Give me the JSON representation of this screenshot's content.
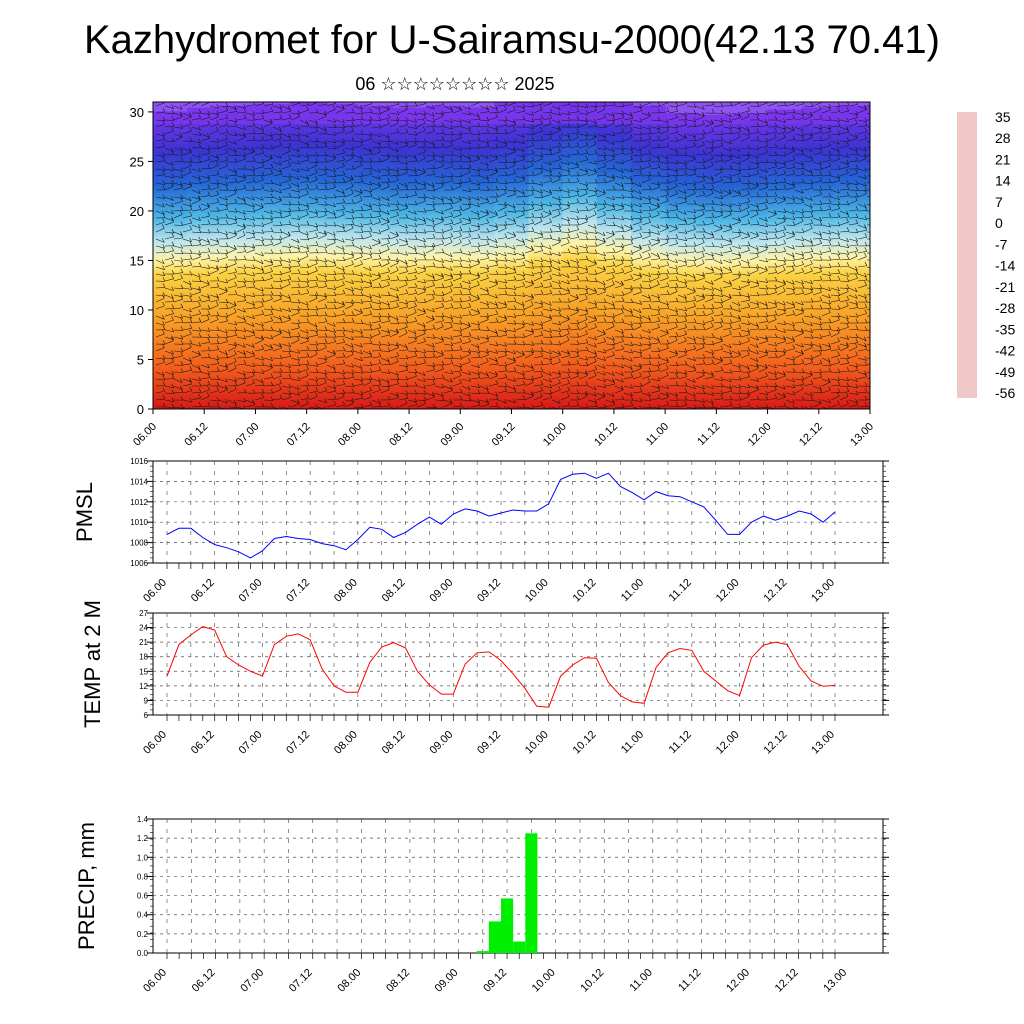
{
  "title": "Kazhydromet for U-Sairamsu-2000(42.13 70.41)",
  "subtitle": "06 ☆☆☆☆☆☆☆☆ 2025",
  "chart_data": [
    {
      "type": "heatmap",
      "x_ticks": [
        "06.00",
        "06.12",
        "07.00",
        "07.12",
        "08.00",
        "08.12",
        "09.00",
        "09.12",
        "10.00",
        "10.12",
        "11.00",
        "11.12",
        "12.00",
        "12.12",
        "13.00"
      ],
      "y_ticks": [
        "0",
        "5",
        "10",
        "15",
        "20",
        "25",
        "30"
      ],
      "ylim": [
        0,
        31
      ],
      "colorbar_labels": [
        "35",
        "28",
        "21",
        "14",
        "7",
        "0",
        "-7",
        "-14",
        "-21",
        "-28",
        "-35",
        "-42",
        "-49",
        "-56"
      ],
      "colorbar_colors": [
        "#f0c8c8",
        "#d21414",
        "#f04020",
        "#f57518",
        "#f6a020",
        "#fad54a",
        "#fff08c",
        "#c6ebf0",
        "#4ab5e8",
        "#2060d4",
        "#3338d0",
        "#5a20e0",
        "#8a40f0"
      ],
      "freezing_level_km": [
        16.5,
        16.3,
        16.2,
        16.1,
        16.0,
        16.1,
        16.2,
        16.3,
        16.2,
        16.3,
        16.0,
        15.3,
        14.8,
        15.5,
        16.2,
        16.6,
        16.7,
        16.6,
        16.4,
        16.3,
        16.2
      ],
      "wind_barbs": true
    },
    {
      "type": "line",
      "ylabel": "PMSL",
      "x_ticks": [
        "06.00",
        "06.12",
        "07.00",
        "07.12",
        "08.00",
        "08.12",
        "09.00",
        "09.12",
        "10.00",
        "10.12",
        "11.00",
        "11.12",
        "12.00",
        "12.12",
        "13.00"
      ],
      "y_ticks": [
        "1006",
        "1008",
        "1010",
        "1012",
        "1014",
        "1016"
      ],
      "ylim": [
        1006,
        1016
      ],
      "color": "#0000ff",
      "values": [
        1008.8,
        1009.4,
        1009.4,
        1008.5,
        1007.8,
        1007.5,
        1007.1,
        1006.5,
        1007.2,
        1008.4,
        1008.6,
        1008.4,
        1008.3,
        1007.9,
        1007.7,
        1007.3,
        1008.3,
        1009.5,
        1009.3,
        1008.5,
        1009.0,
        1009.8,
        1010.5,
        1009.8,
        1010.8,
        1011.3,
        1011.1,
        1010.6,
        1010.9,
        1011.2,
        1011.1,
        1011.1,
        1011.8,
        1014.2,
        1014.7,
        1014.8,
        1014.3,
        1014.8,
        1013.5,
        1012.9,
        1012.2,
        1013.0,
        1012.6,
        1012.5,
        1012.0,
        1011.5,
        1010.2,
        1008.8,
        1008.8,
        1010.0,
        1010.6,
        1010.2,
        1010.6,
        1011.1,
        1010.8,
        1010.0,
        1011.0
      ]
    },
    {
      "type": "line",
      "ylabel": "TEMP at 2 M",
      "x_ticks": [
        "06.00",
        "06.12",
        "07.00",
        "07.12",
        "08.00",
        "08.12",
        "09.00",
        "09.12",
        "10.00",
        "10.12",
        "11.00",
        "11.12",
        "12.00",
        "12.12",
        "13.00"
      ],
      "y_ticks": [
        "6",
        "9",
        "12",
        "15",
        "18",
        "21",
        "24",
        "27"
      ],
      "ylim": [
        6,
        27
      ],
      "color": "#ff0000",
      "values": [
        14.0,
        20.5,
        22.5,
        24.2,
        23.5,
        18.0,
        16.3,
        15.0,
        14.0,
        20.5,
        22.2,
        22.7,
        21.5,
        15.5,
        12.0,
        10.7,
        10.7,
        16.8,
        20.0,
        20.9,
        19.8,
        15.0,
        12.2,
        10.3,
        10.3,
        16.5,
        18.8,
        19.0,
        17.2,
        14.5,
        11.5,
        7.8,
        7.6,
        14.0,
        16.3,
        17.8,
        17.7,
        12.7,
        10.0,
        8.7,
        8.4,
        15.8,
        18.8,
        19.7,
        19.3,
        15.0,
        13.0,
        11.0,
        10.0,
        17.8,
        20.4,
        21.0,
        20.5,
        16.0,
        13.0,
        11.9,
        12.1
      ]
    },
    {
      "type": "bar",
      "ylabel": "PRECIP, mm",
      "x_ticks": [
        "06.00",
        "06.12",
        "07.00",
        "07.12",
        "08.00",
        "08.12",
        "09.00",
        "09.12",
        "10.00",
        "10.12",
        "11.00",
        "11.12",
        "12.00",
        "12.12",
        "13.00"
      ],
      "y_ticks": [
        "0.0",
        "0.2",
        "0.4",
        "0.6",
        "0.8",
        "1.0",
        "1.2",
        "1.4"
      ],
      "ylim": [
        0,
        1.4
      ],
      "color": "#00ee00",
      "values": [
        0,
        0,
        0,
        0,
        0,
        0,
        0,
        0,
        0,
        0,
        0,
        0,
        0,
        0,
        0,
        0,
        0,
        0,
        0,
        0,
        0,
        0,
        0,
        0,
        0,
        0,
        0.02,
        0.33,
        0.57,
        0.12,
        1.25,
        0,
        0,
        0,
        0,
        0,
        0,
        0,
        0,
        0,
        0,
        0,
        0,
        0,
        0,
        0,
        0,
        0,
        0,
        0,
        0,
        0,
        0,
        0,
        0,
        0
      ]
    }
  ]
}
